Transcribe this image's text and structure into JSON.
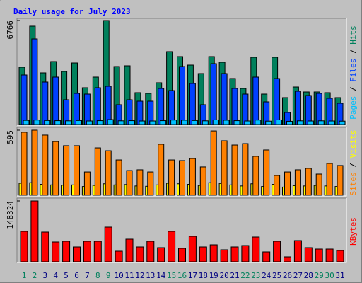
{
  "chart_data": [
    {
      "type": "bar",
      "title": "Daily usage for July 2023",
      "ylim": [
        0,
        6766
      ],
      "yticks": [
        6766
      ],
      "legend_separator": " / ",
      "series": [
        {
          "name": "Hits",
          "color": "#00805c",
          "values": [
            3728,
            6398,
            3360,
            4096,
            3452,
            4004,
            2393,
            3084,
            6766,
            3774,
            3820,
            2071,
            2025,
            2716,
            4741,
            4419,
            3866,
            3314,
            4419,
            4050,
            2992,
            2347,
            4373,
            1979,
            4373,
            1749,
            2439,
            2117,
            2117,
            2071,
            1749
          ]
        },
        {
          "name": "Files",
          "color": "#0040ff",
          "values": [
            3222,
            5569,
            2762,
            3084,
            1611,
            2025,
            1979,
            2393,
            2486,
            1289,
            1611,
            1519,
            1519,
            2347,
            2209,
            3774,
            2670,
            1289,
            3958,
            3314,
            2347,
            1979,
            3084,
            1473,
            2992,
            783,
            2163,
            1887,
            2025,
            1703,
            1381
          ]
        },
        {
          "name": "Pages",
          "color": "#00c0ff",
          "values": [
            270,
            290,
            260,
            250,
            240,
            260,
            230,
            250,
            320,
            240,
            250,
            230,
            230,
            250,
            290,
            280,
            260,
            240,
            300,
            280,
            250,
            230,
            290,
            220,
            300,
            210,
            240,
            230,
            240,
            230,
            220
          ]
        }
      ]
    },
    {
      "type": "bar",
      "ylim": [
        0,
        595
      ],
      "yticks": [
        595
      ],
      "legend_separator": " / ",
      "series": [
        {
          "name": "Visits",
          "color": "#ffff00",
          "values": [
            110,
            115,
            100,
            95,
            92,
            95,
            80,
            90,
            105,
            95,
            98,
            85,
            82,
            95,
            110,
            105,
            100,
            90,
            115,
            108,
            95,
            85,
            105,
            80,
            100,
            75,
            88,
            85,
            90,
            85,
            80
          ]
        },
        {
          "name": "Sites",
          "color": "#ff8000",
          "values": [
            576,
            595,
            550,
            491,
            453,
            453,
            213,
            433,
            407,
            323,
            226,
            233,
            213,
            466,
            323,
            317,
            336,
            259,
            588,
            498,
            459,
            472,
            356,
            414,
            181,
            213,
            233,
            246,
            194,
            291,
            272
          ]
        }
      ]
    },
    {
      "type": "bar",
      "ylim": [
        0,
        148324
      ],
      "yticks": [
        148324
      ],
      "legend_separator": " / ",
      "categories": [
        "1",
        "2",
        "3",
        "4",
        "5",
        "6",
        "7",
        "8",
        "9",
        "10",
        "11",
        "12",
        "13",
        "14",
        "15",
        "16",
        "17",
        "18",
        "19",
        "20",
        "21",
        "22",
        "23",
        "24",
        "25",
        "26",
        "27",
        "28",
        "29",
        "30",
        "31"
      ],
      "category_colors": [
        "#00805c",
        "#00805c",
        "#000080",
        "#000080",
        "#000080",
        "#000080",
        "#000080",
        "#00805c",
        "#00805c",
        "#000080",
        "#000080",
        "#000080",
        "#000080",
        "#000080",
        "#00805c",
        "#00805c",
        "#000080",
        "#000080",
        "#000080",
        "#000080",
        "#000080",
        "#00805c",
        "#00805c",
        "#000080",
        "#000080",
        "#000080",
        "#000080",
        "#000080",
        "#00805c",
        "#00805c",
        "#000080"
      ],
      "series": [
        {
          "name": "KBytes",
          "color": "#ff0000",
          "values": [
            74162,
            148324,
            72437,
            48292,
            50016,
            36219,
            50016,
            50016,
            84510,
            25871,
            55191,
            36219,
            50016,
            34494,
            74162,
            32769,
            62089,
            36219,
            41393,
            29320,
            36219,
            39668,
            60365,
            24146,
            50016,
            12073,
            51741,
            34494,
            31045,
            31045,
            27595
          ]
        }
      ]
    }
  ]
}
